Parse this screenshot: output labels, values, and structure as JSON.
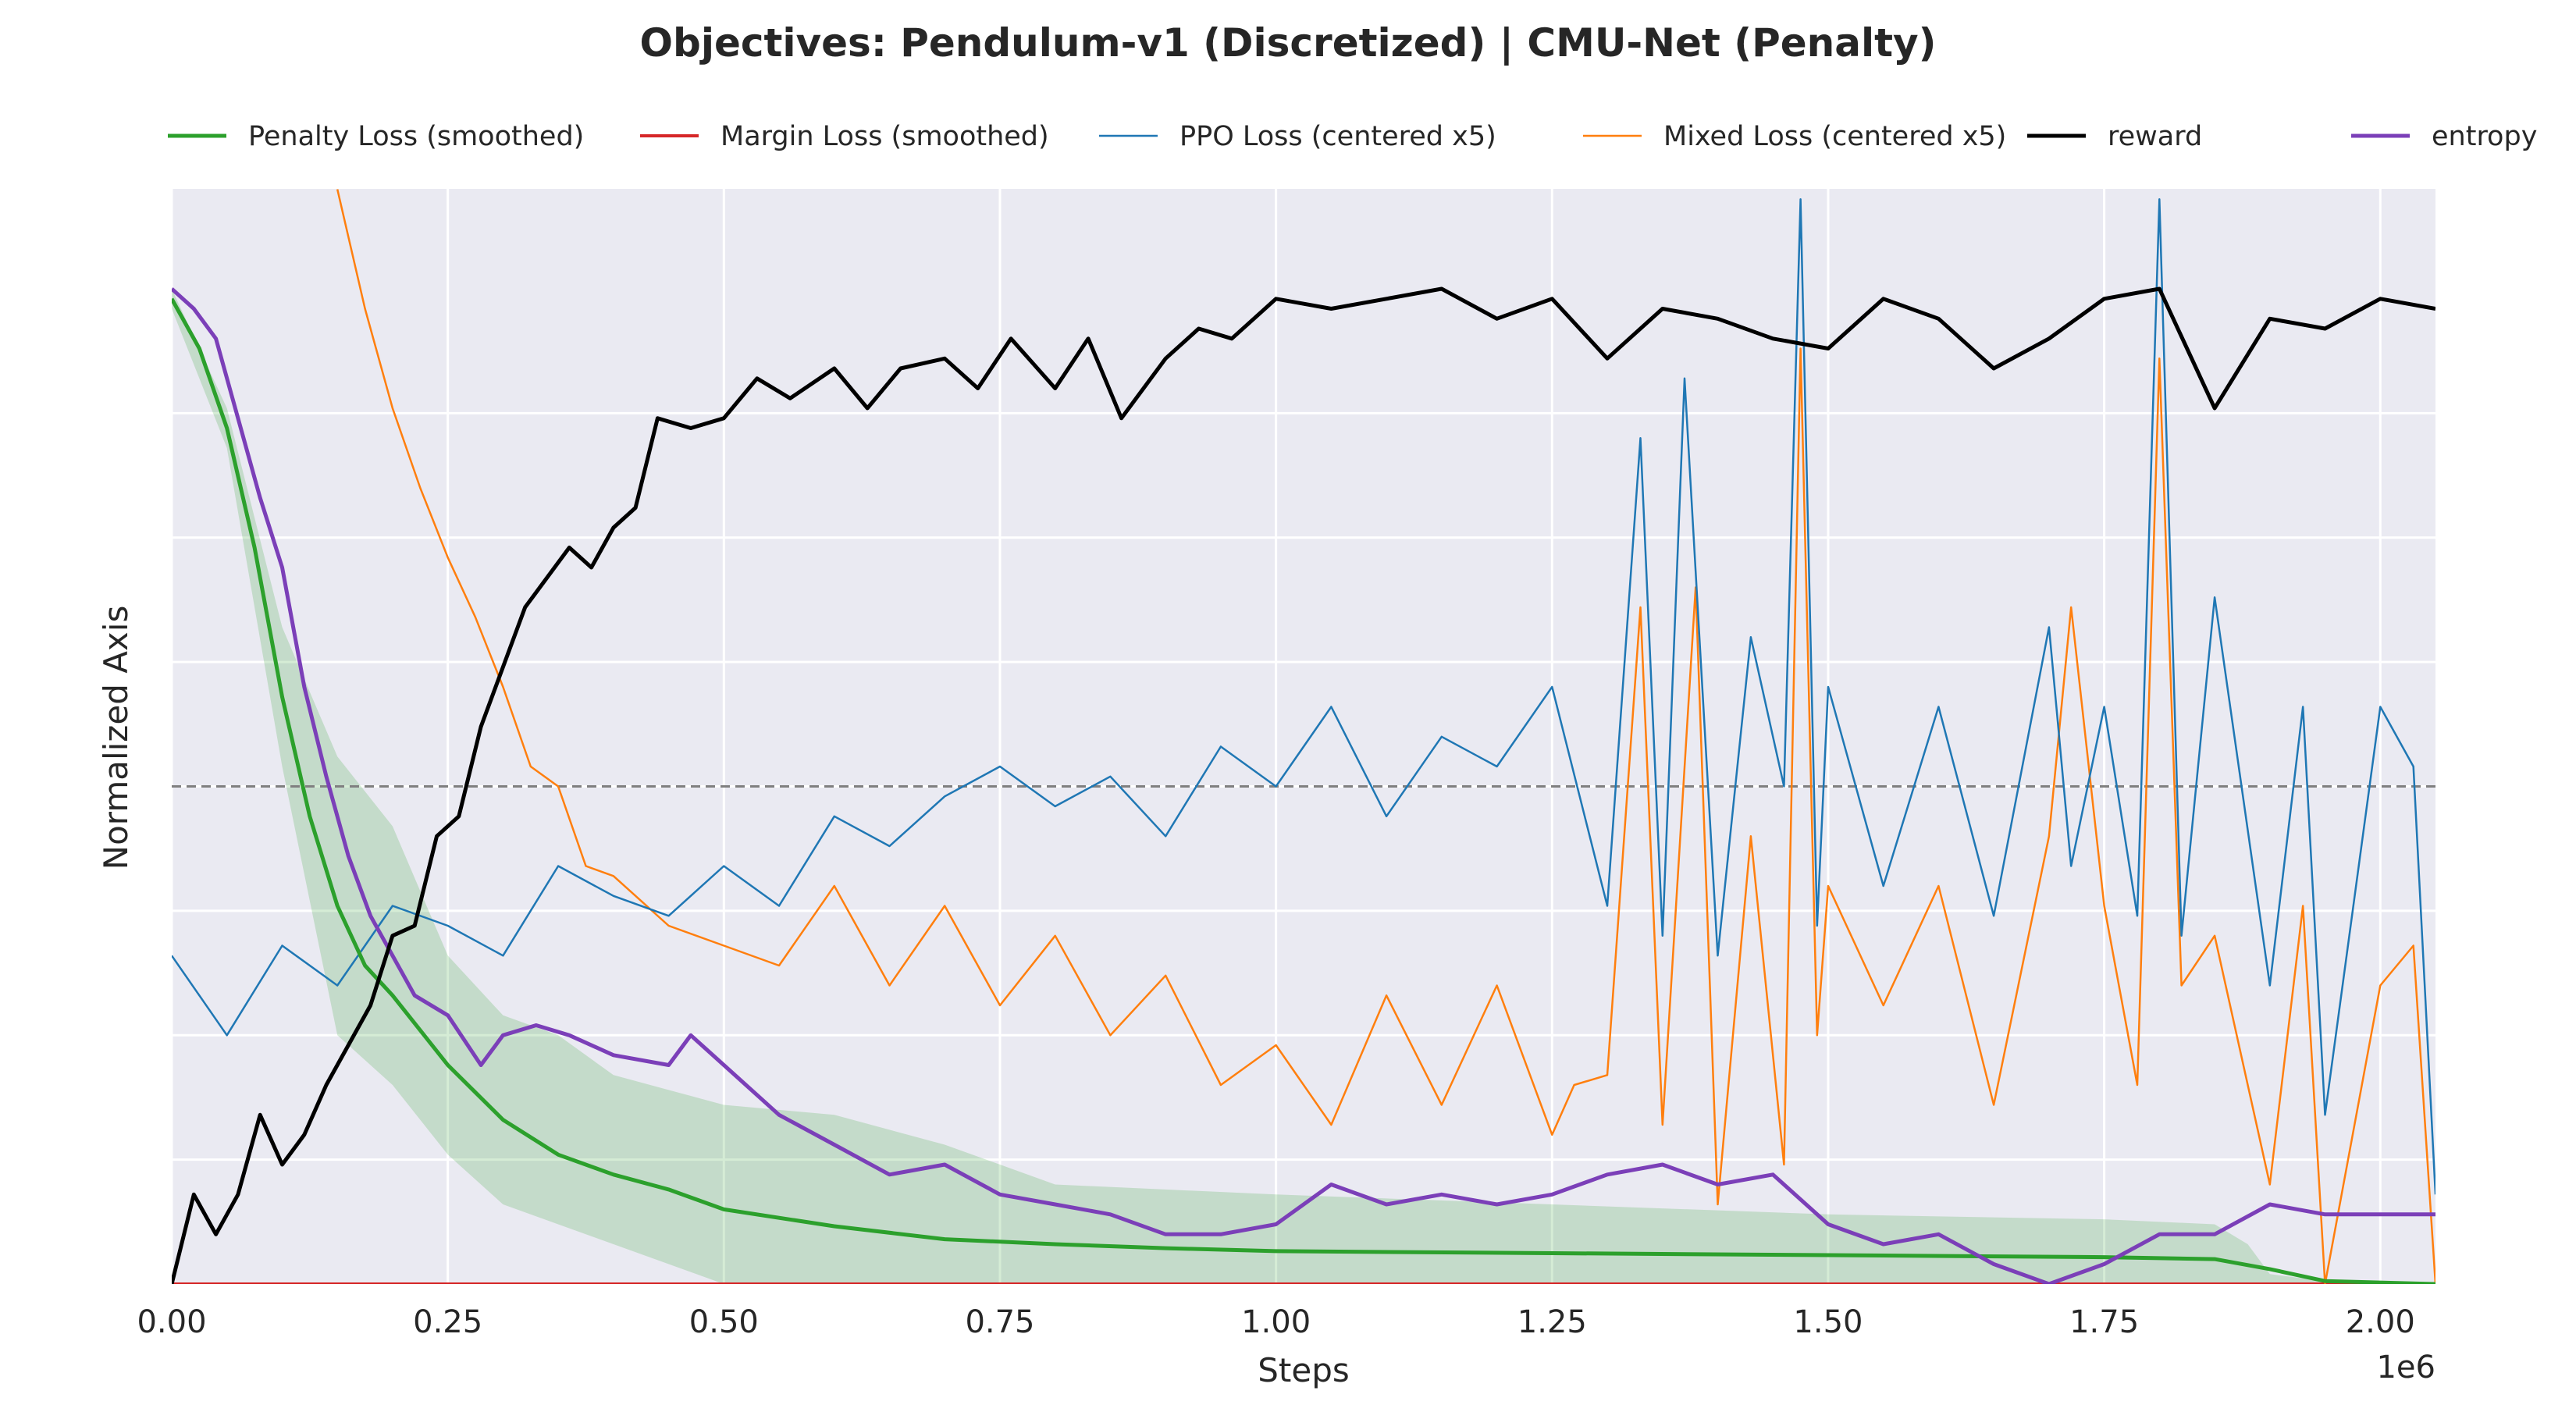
{
  "chart_data": {
    "type": "line",
    "title": "Objectives: Pendulum-v1 (Discretized) | CMU-Net (Penalty)",
    "xlabel": "Steps",
    "ylabel": "Normalized Axis",
    "x_offset_label": "1e6",
    "xlim": [
      0.0,
      2.05
    ],
    "ylim": [
      0.0,
      1.0
    ],
    "x_ticks": [
      0.0,
      0.25,
      0.5,
      0.75,
      1.0,
      1.25,
      1.5,
      1.75,
      2.0
    ],
    "x_tick_labels": [
      "0.00",
      "0.25",
      "0.50",
      "0.75",
      "1.00",
      "1.25",
      "1.50",
      "1.75",
      "2.00"
    ],
    "y_grid": [
      0.0,
      0.125,
      0.25,
      0.375,
      0.5,
      0.625,
      0.75,
      0.875
    ],
    "grid": true,
    "legend_position": "top",
    "reference_line": {
      "y": 0.5,
      "style": "dashed",
      "color": "#808080"
    },
    "series": [
      {
        "name": "Penalty Loss (smoothed)",
        "color": "#2ca02c",
        "x": [
          0.0,
          0.025,
          0.05,
          0.075,
          0.1,
          0.125,
          0.15,
          0.175,
          0.2,
          0.25,
          0.3,
          0.35,
          0.4,
          0.45,
          0.5,
          0.6,
          0.7,
          0.8,
          0.9,
          1.0,
          1.25,
          1.5,
          1.75,
          1.85,
          1.9,
          1.95,
          2.05
        ],
        "y": [
          0.99,
          0.94,
          0.86,
          0.74,
          0.59,
          0.47,
          0.38,
          0.32,
          0.29,
          0.22,
          0.165,
          0.13,
          0.11,
          0.095,
          0.075,
          0.058,
          0.045,
          0.04,
          0.036,
          0.033,
          0.031,
          0.029,
          0.027,
          0.025,
          0.015,
          0.003,
          0.0
        ]
      },
      {
        "name": "Margin Loss (smoothed)",
        "color": "#d62728",
        "x": [
          0.0,
          2.05
        ],
        "y": [
          0.0,
          0.0
        ]
      },
      {
        "name": "PPO Loss (centered x5)",
        "color": "#1f77b4",
        "x": [
          0.0,
          0.05,
          0.1,
          0.15,
          0.2,
          0.25,
          0.3,
          0.35,
          0.4,
          0.45,
          0.5,
          0.55,
          0.6,
          0.65,
          0.7,
          0.75,
          0.8,
          0.85,
          0.9,
          0.95,
          1.0,
          1.05,
          1.1,
          1.15,
          1.2,
          1.25,
          1.3,
          1.33,
          1.35,
          1.37,
          1.4,
          1.43,
          1.46,
          1.475,
          1.49,
          1.5,
          1.55,
          1.6,
          1.65,
          1.7,
          1.72,
          1.75,
          1.78,
          1.8,
          1.82,
          1.85,
          1.9,
          1.93,
          1.95,
          2.0,
          2.03,
          2.05
        ],
        "y": [
          0.33,
          0.25,
          0.34,
          0.3,
          0.38,
          0.36,
          0.33,
          0.42,
          0.39,
          0.37,
          0.42,
          0.38,
          0.47,
          0.44,
          0.49,
          0.52,
          0.48,
          0.51,
          0.45,
          0.54,
          0.5,
          0.58,
          0.47,
          0.55,
          0.52,
          0.6,
          0.38,
          0.85,
          0.35,
          0.91,
          0.33,
          0.65,
          0.5,
          1.09,
          0.36,
          0.6,
          0.4,
          0.58,
          0.37,
          0.66,
          0.42,
          0.58,
          0.37,
          1.09,
          0.35,
          0.69,
          0.3,
          0.58,
          0.17,
          0.58,
          0.52,
          0.09
        ]
      },
      {
        "name": "Mixed Loss (centered x5)",
        "color": "#ff7f0e",
        "x": [
          0.15,
          0.175,
          0.2,
          0.225,
          0.25,
          0.275,
          0.3,
          0.325,
          0.35,
          0.375,
          0.4,
          0.45,
          0.5,
          0.55,
          0.6,
          0.65,
          0.7,
          0.75,
          0.8,
          0.85,
          0.9,
          0.95,
          1.0,
          1.05,
          1.1,
          1.15,
          1.2,
          1.25,
          1.27,
          1.3,
          1.33,
          1.35,
          1.38,
          1.4,
          1.43,
          1.46,
          1.475,
          1.49,
          1.5,
          1.55,
          1.6,
          1.65,
          1.7,
          1.72,
          1.75,
          1.78,
          1.8,
          1.82,
          1.85,
          1.9,
          1.93,
          1.95,
          2.0,
          2.03,
          2.05
        ],
        "y": [
          1.1,
          0.98,
          0.88,
          0.8,
          0.73,
          0.67,
          0.6,
          0.52,
          0.5,
          0.42,
          0.41,
          0.36,
          0.34,
          0.32,
          0.4,
          0.3,
          0.38,
          0.28,
          0.35,
          0.25,
          0.31,
          0.2,
          0.24,
          0.16,
          0.29,
          0.18,
          0.3,
          0.15,
          0.2,
          0.21,
          0.68,
          0.16,
          0.7,
          0.08,
          0.45,
          0.12,
          0.94,
          0.25,
          0.4,
          0.28,
          0.4,
          0.18,
          0.45,
          0.68,
          0.38,
          0.2,
          0.93,
          0.3,
          0.35,
          0.1,
          0.38,
          0.0,
          0.3,
          0.34,
          0.0
        ]
      },
      {
        "name": "reward",
        "color": "#000000",
        "x": [
          0.0,
          0.02,
          0.04,
          0.06,
          0.08,
          0.1,
          0.12,
          0.14,
          0.16,
          0.18,
          0.2,
          0.22,
          0.24,
          0.26,
          0.28,
          0.3,
          0.32,
          0.34,
          0.36,
          0.38,
          0.4,
          0.42,
          0.44,
          0.47,
          0.5,
          0.53,
          0.56,
          0.6,
          0.63,
          0.66,
          0.7,
          0.73,
          0.76,
          0.8,
          0.83,
          0.86,
          0.9,
          0.93,
          0.96,
          1.0,
          1.05,
          1.1,
          1.15,
          1.2,
          1.25,
          1.3,
          1.35,
          1.4,
          1.45,
          1.5,
          1.55,
          1.6,
          1.65,
          1.7,
          1.75,
          1.8,
          1.85,
          1.9,
          1.95,
          2.0,
          2.05
        ],
        "y": [
          0.0,
          0.09,
          0.05,
          0.09,
          0.17,
          0.12,
          0.15,
          0.2,
          0.24,
          0.28,
          0.35,
          0.36,
          0.45,
          0.47,
          0.56,
          0.62,
          0.68,
          0.71,
          0.74,
          0.72,
          0.76,
          0.78,
          0.87,
          0.86,
          0.87,
          0.91,
          0.89,
          0.92,
          0.88,
          0.92,
          0.93,
          0.9,
          0.95,
          0.9,
          0.95,
          0.87,
          0.93,
          0.96,
          0.95,
          0.99,
          0.98,
          0.99,
          1.0,
          0.97,
          0.99,
          0.93,
          0.98,
          0.97,
          0.95,
          0.94,
          0.99,
          0.97,
          0.92,
          0.95,
          0.99,
          1.0,
          0.88,
          0.97,
          0.96,
          0.99,
          0.98
        ]
      },
      {
        "name": "entropy",
        "color": "#7b3fb8",
        "x": [
          0.0,
          0.02,
          0.04,
          0.06,
          0.08,
          0.1,
          0.12,
          0.14,
          0.16,
          0.18,
          0.2,
          0.22,
          0.25,
          0.28,
          0.3,
          0.33,
          0.36,
          0.4,
          0.45,
          0.47,
          0.5,
          0.55,
          0.6,
          0.65,
          0.7,
          0.75,
          0.8,
          0.85,
          0.9,
          0.95,
          1.0,
          1.05,
          1.1,
          1.15,
          1.2,
          1.25,
          1.3,
          1.35,
          1.4,
          1.45,
          1.5,
          1.55,
          1.6,
          1.65,
          1.7,
          1.75,
          1.8,
          1.85,
          1.9,
          1.95,
          2.0,
          2.05
        ],
        "y": [
          1.0,
          0.98,
          0.95,
          0.87,
          0.79,
          0.72,
          0.6,
          0.51,
          0.43,
          0.37,
          0.33,
          0.29,
          0.27,
          0.22,
          0.25,
          0.26,
          0.25,
          0.23,
          0.22,
          0.25,
          0.22,
          0.17,
          0.14,
          0.11,
          0.12,
          0.09,
          0.08,
          0.07,
          0.05,
          0.05,
          0.06,
          0.1,
          0.08,
          0.09,
          0.08,
          0.09,
          0.11,
          0.12,
          0.1,
          0.11,
          0.06,
          0.04,
          0.05,
          0.02,
          0.0,
          0.02,
          0.05,
          0.05,
          0.08,
          0.07,
          0.07,
          0.07
        ]
      }
    ],
    "bands": [
      {
        "series": "Penalty Loss (smoothed)",
        "color": "#2ca02c",
        "opacity": 0.2,
        "x": [
          0.0,
          0.05,
          0.1,
          0.15,
          0.2,
          0.25,
          0.3,
          0.35,
          0.4,
          0.5,
          0.6,
          0.7,
          0.8,
          1.0,
          1.25,
          1.5,
          1.75,
          1.85,
          1.88,
          1.9,
          1.95,
          2.05
        ],
        "upper": [
          1.0,
          0.88,
          0.66,
          0.53,
          0.46,
          0.33,
          0.27,
          0.25,
          0.21,
          0.18,
          0.17,
          0.14,
          0.1,
          0.09,
          0.08,
          0.07,
          0.065,
          0.06,
          0.04,
          0.01,
          0.003,
          0.0
        ],
        "lower": [
          0.98,
          0.84,
          0.52,
          0.25,
          0.2,
          0.13,
          0.08,
          0.06,
          0.04,
          0.0,
          0.0,
          0.0,
          0.0,
          0.0,
          0.0,
          0.0,
          0.0,
          0.0,
          0.0,
          0.0,
          0.0,
          0.0
        ]
      }
    ]
  }
}
